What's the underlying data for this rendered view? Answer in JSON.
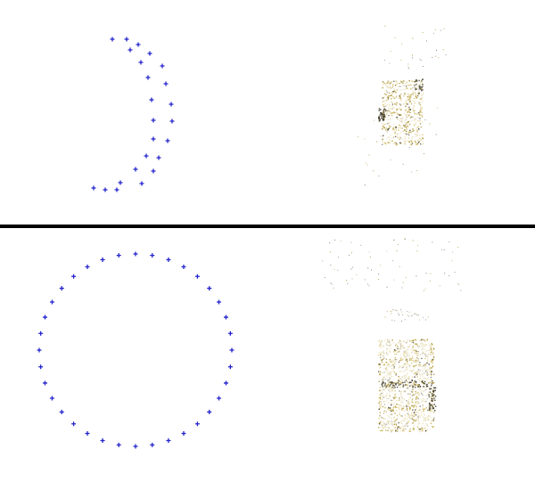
{
  "colors": {
    "background": "#ffffff",
    "camera_marker": "#2222cc",
    "divider": "#000000",
    "point_cloud_light": "#c8b24a",
    "point_cloud_mid": "#a88e2e",
    "point_cloud_dark": "#3a3320",
    "sparse_point": "#6e6e6e"
  },
  "panels": [
    {
      "id": "top",
      "camera_path": "partial-arc",
      "camera_count": 24,
      "point_cloud": "sparse-building-reconstruction"
    },
    {
      "id": "bottom",
      "camera_path": "full-circle",
      "camera_count": 36,
      "point_cloud": "dense-building-reconstruction"
    }
  ],
  "icons": {
    "camera_marker": "plus-marker-icon"
  }
}
